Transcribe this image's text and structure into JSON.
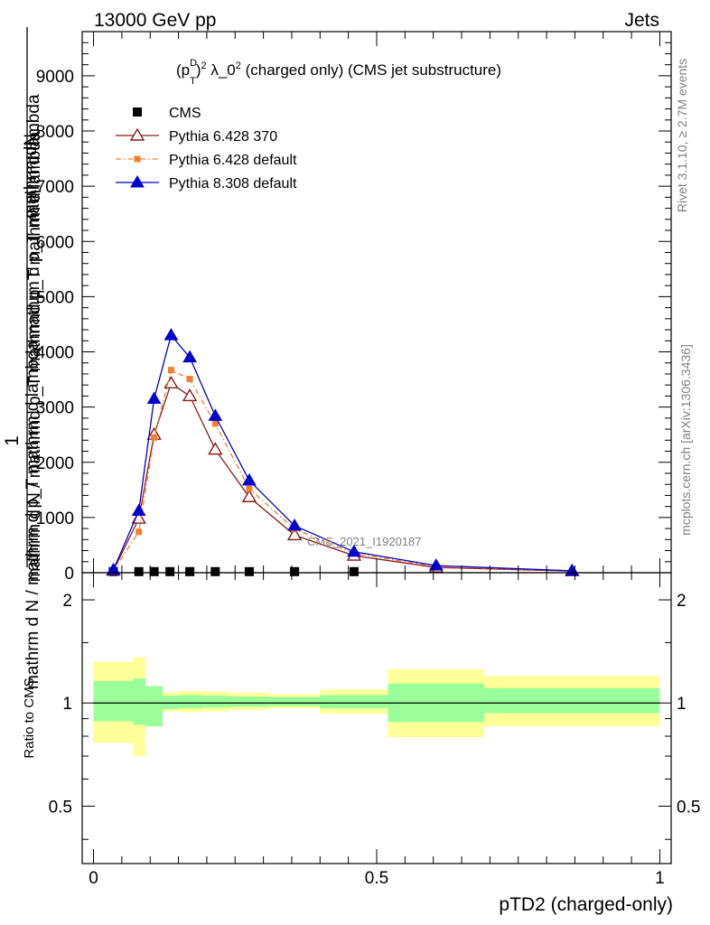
{
  "header": {
    "left": "13000 GeV pp",
    "right": "Jets"
  },
  "title": {
    "text": "(p_T^D)^2 λ_0^2 (charged only) (CMS jet substructure)",
    "p": "(p",
    "sup_d": "D",
    "sub_t": "T",
    "close": ")",
    "sup_2a": "2",
    "lambda": " λ_0",
    "sup_2b": "2",
    "rest": " (charged only) (CMS jet substructure)"
  },
  "side_labels": {
    "rivet": "Rivet 3.1.10, ≥ 2.7M events",
    "mcplots": "mcplots.cern.ch [arXiv:1306.3436]"
  },
  "watermark": "CMS_2021_I1920187",
  "ylabel_main": {
    "one": "1",
    "numerator_1": "mathrm dN",
    "numerator_2": "mathrm d N / mathrmd p_T mathrmd p_T mathrm d lambda",
    "numerator_3": "mathrm d p_T mathrm d lambda",
    "denominator": "mathrm d N / mathrm d p_T mathrm d lambda"
  },
  "ylabel_ratio": "Ratio to CMS",
  "xlabel": "pTD2 (charged-only)",
  "chart_data": [
    {
      "type": "line",
      "panel": "main",
      "xlim": [
        -0.02,
        1.02
      ],
      "ylim": [
        0,
        9800
      ],
      "y_ticks": [
        0,
        1000,
        2000,
        3000,
        4000,
        5000,
        6000,
        7000,
        8000,
        9000
      ],
      "y_tick_labels": [
        "0",
        "1000",
        "2000",
        "3000",
        "4000",
        "5000",
        "6000",
        "7000",
        "8000",
        "9000"
      ],
      "legend_position": "top-left",
      "series": [
        {
          "name": "CMS",
          "marker": "filled-square",
          "color": "#000000",
          "x": [
            0.035,
            0.08,
            0.107,
            0.135,
            0.17,
            0.215,
            0.275,
            0.355,
            0.46
          ],
          "y": [
            3,
            3,
            3,
            3,
            3,
            3,
            3,
            3,
            3
          ]
        },
        {
          "name": "Pythia 6.428 370",
          "marker": "open-triangle",
          "color": "#8b1a1a",
          "line": "solid",
          "x": [
            0.035,
            0.08,
            0.107,
            0.137,
            0.17,
            0.215,
            0.275,
            0.355,
            0.46,
            0.605,
            0.845
          ],
          "y": [
            40,
            980,
            2500,
            3430,
            3200,
            2230,
            1370,
            680,
            310,
            95,
            30
          ]
        },
        {
          "name": "Pythia 6.428 default",
          "marker": "filled-small-square",
          "color": "#f08030",
          "line": "dashdot",
          "x": [
            0.035,
            0.08,
            0.107,
            0.137,
            0.17,
            0.215,
            0.275,
            0.355,
            0.46,
            0.605,
            0.845
          ],
          "y": [
            40,
            740,
            2450,
            3670,
            3510,
            2700,
            1520,
            790,
            350,
            110,
            35
          ]
        },
        {
          "name": "Pythia 8.308 default",
          "marker": "filled-triangle",
          "color": "#0000cc",
          "line": "solid",
          "x": [
            0.035,
            0.08,
            0.107,
            0.137,
            0.17,
            0.215,
            0.275,
            0.355,
            0.46,
            0.605,
            0.845
          ],
          "y": [
            50,
            1120,
            3150,
            4300,
            3900,
            2840,
            1670,
            850,
            380,
            130,
            35
          ]
        }
      ]
    },
    {
      "type": "area",
      "panel": "ratio",
      "xlim": [
        -0.02,
        1.02
      ],
      "ylim": [
        0.34,
        2.4
      ],
      "y_scale": "log",
      "y_ticks": [
        0.5,
        1,
        2
      ],
      "y_tick_labels": [
        "0.5",
        "1",
        "2"
      ],
      "x_ticks": [
        0,
        0.5,
        1
      ],
      "x_tick_labels": [
        "0",
        "0.5",
        "1"
      ],
      "reference_line": 1,
      "bins": [
        {
          "x0": 0.0,
          "x1": 0.07,
          "inner": [
            0.885,
            1.16
          ],
          "outer": [
            0.765,
            1.32
          ]
        },
        {
          "x0": 0.07,
          "x1": 0.092,
          "inner": [
            0.865,
            1.18
          ],
          "outer": [
            0.7,
            1.36
          ]
        },
        {
          "x0": 0.092,
          "x1": 0.122,
          "inner": [
            0.855,
            1.12
          ],
          "outer": [
            0.855,
            1.12
          ]
        },
        {
          "x0": 0.122,
          "x1": 0.152,
          "inner": [
            0.96,
            1.05
          ],
          "outer": [
            0.945,
            1.075
          ]
        },
        {
          "x0": 0.152,
          "x1": 0.192,
          "inner": [
            0.965,
            1.055
          ],
          "outer": [
            0.94,
            1.085
          ]
        },
        {
          "x0": 0.192,
          "x1": 0.24,
          "inner": [
            0.97,
            1.05
          ],
          "outer": [
            0.945,
            1.08
          ]
        },
        {
          "x0": 0.24,
          "x1": 0.31,
          "inner": [
            0.975,
            1.045
          ],
          "outer": [
            0.955,
            1.07
          ]
        },
        {
          "x0": 0.31,
          "x1": 0.4,
          "inner": [
            0.98,
            1.04
          ],
          "outer": [
            0.965,
            1.06
          ]
        },
        {
          "x0": 0.4,
          "x1": 0.52,
          "inner": [
            0.965,
            1.055
          ],
          "outer": [
            0.93,
            1.095
          ]
        },
        {
          "x0": 0.52,
          "x1": 0.69,
          "inner": [
            0.88,
            1.14
          ],
          "outer": [
            0.795,
            1.255
          ]
        },
        {
          "x0": 0.69,
          "x1": 1.0,
          "inner": [
            0.935,
            1.105
          ],
          "outer": [
            0.855,
            1.2
          ]
        }
      ]
    }
  ],
  "colors": {
    "band_outer": "#ffff99",
    "band_inner": "#99ff99",
    "axis": "#000000"
  }
}
